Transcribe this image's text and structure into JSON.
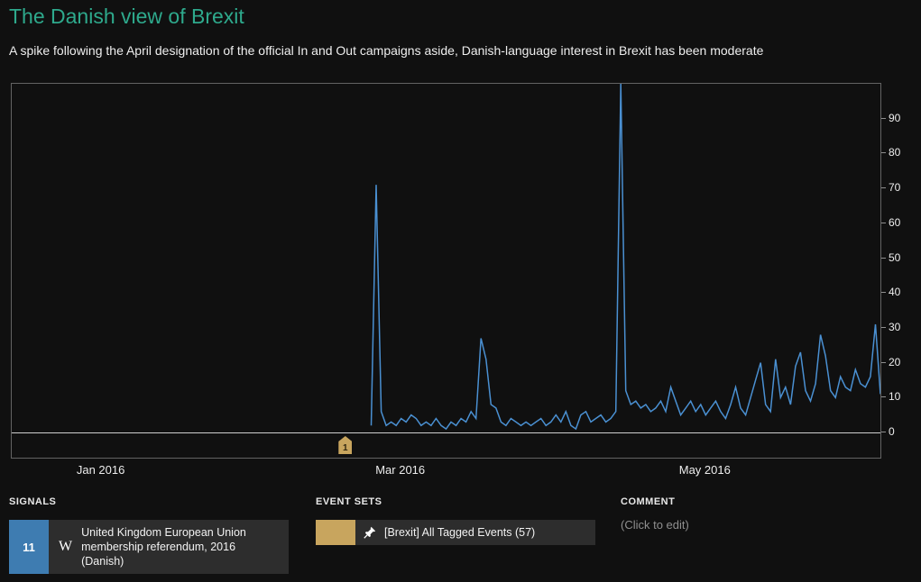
{
  "page": {
    "title": "The Danish view of Brexit",
    "subtitle": "A spike following the April designation of the official In and Out campaigns aside, Danish-language interest in Brexit has been moderate"
  },
  "colors": {
    "title_accent": "#2ea98c",
    "line_blue": "#4a90d2",
    "signal_blue": "#3e7cb1",
    "event_gold": "#c8a55e",
    "background": "#101010"
  },
  "icons": {
    "wikipedia_w": "W",
    "pin": "pushpin-icon"
  },
  "chart_data": {
    "type": "line",
    "title": "",
    "xlabel": "",
    "ylabel": "",
    "ylim": [
      0,
      100
    ],
    "grid": false,
    "legend": false,
    "y_axis_side": "right",
    "y_ticks": [
      0,
      10,
      20,
      30,
      40,
      50,
      60,
      70,
      80,
      90
    ],
    "y_max": 100,
    "x_domain_days": 174,
    "x_ticks": [
      {
        "label": "Jan 2016",
        "day": 18
      },
      {
        "label": "Mar 2016",
        "day": 78
      },
      {
        "label": "May 2016",
        "day": 139
      }
    ],
    "series_color": "#4a90d2",
    "series": [
      {
        "name": "United Kingdom European Union membership referendum, 2016 (Danish)",
        "start_day": 72,
        "daily_values": [
          2,
          71,
          6,
          2,
          3,
          2,
          4,
          3,
          5,
          4,
          2,
          3,
          2,
          4,
          2,
          1,
          3,
          2,
          4,
          3,
          6,
          4,
          27,
          21,
          8,
          7,
          3,
          2,
          4,
          3,
          2,
          3,
          2,
          3,
          4,
          2,
          3,
          5,
          3,
          6,
          2,
          1,
          5,
          6,
          3,
          4,
          5,
          3,
          4,
          6,
          100,
          12,
          8,
          9,
          7,
          8,
          6,
          7,
          9,
          6,
          13,
          9,
          5,
          7,
          9,
          6,
          8,
          5,
          7,
          9,
          6,
          4,
          8,
          13,
          7,
          5,
          10,
          15,
          20,
          8,
          6,
          21,
          10,
          13,
          8,
          19,
          23,
          12,
          9,
          14,
          28,
          22,
          12,
          10,
          16,
          13,
          12,
          18,
          14,
          13,
          16,
          31,
          11
        ]
      }
    ],
    "event_markers": [
      {
        "label": "1",
        "day": 67,
        "color": "#c8a55e"
      }
    ]
  },
  "panels": {
    "signals": {
      "header": "SIGNALS",
      "items": [
        {
          "count": "11",
          "icon": "wikipedia-w",
          "label": "United Kingdom European Union membership referendum, 2016 (Danish)",
          "accent": "#3e7cb1"
        }
      ]
    },
    "event_sets": {
      "header": "EVENT SETS",
      "items": [
        {
          "icon": "pin",
          "label": "[Brexit] All Tagged Events (57)",
          "accent": "#c8a55e"
        }
      ]
    },
    "comment": {
      "header": "COMMENT",
      "placeholder": "(Click to edit)"
    }
  }
}
